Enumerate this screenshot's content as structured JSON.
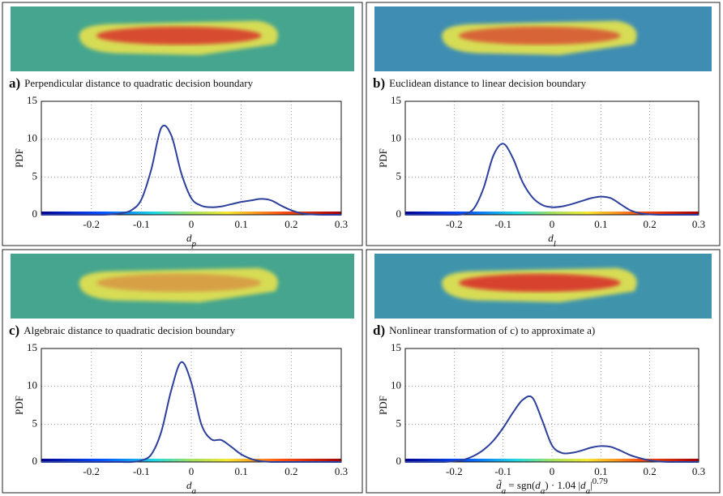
{
  "chart_data": [
    {
      "type": "line",
      "label": "a)",
      "title": "Perpendicular distance to quadratic decision boundary",
      "ylabel": "PDF",
      "xlabel": [
        {
          "text": "d",
          "italic": true
        },
        {
          "text": "p",
          "position": "sub",
          "italic": true
        }
      ],
      "xlim": [
        -0.3,
        0.3
      ],
      "ylim": [
        0,
        15
      ],
      "xticks": [
        -0.2,
        -0.1,
        0,
        0.1,
        0.2,
        0.3
      ],
      "yticks": [
        0,
        5,
        10,
        15
      ],
      "grid": true,
      "x": [
        -0.3,
        -0.28,
        -0.26,
        -0.24,
        -0.22,
        -0.2,
        -0.18,
        -0.16,
        -0.14,
        -0.12,
        -0.1,
        -0.08,
        -0.06,
        -0.04,
        -0.02,
        0,
        0.02,
        0.04,
        0.06,
        0.08,
        0.1,
        0.12,
        0.14,
        0.16,
        0.18,
        0.2,
        0.22,
        0.24,
        0.26,
        0.28,
        0.3
      ],
      "series": [
        {
          "color": "#2c3f9c",
          "values": [
            0,
            0,
            0,
            0,
            0,
            0,
            0,
            0.05,
            0.2,
            0.6,
            2.0,
            6.0,
            11.5,
            10.5,
            5.5,
            2.2,
            1.2,
            1.0,
            1.1,
            1.4,
            1.7,
            1.9,
            2.1,
            1.9,
            1.2,
            0.6,
            0.2,
            0.05,
            0,
            0,
            0
          ]
        }
      ]
    },
    {
      "type": "line",
      "label": "b)",
      "title": "Euclidean distance to linear decision boundary",
      "ylabel": "PDF",
      "xlabel": [
        {
          "text": "d",
          "italic": true
        },
        {
          "text": "l",
          "position": "sub",
          "italic": true
        }
      ],
      "xlim": [
        -0.3,
        0.3
      ],
      "ylim": [
        0,
        15
      ],
      "xticks": [
        -0.2,
        -0.1,
        0,
        0.1,
        0.2,
        0.3
      ],
      "yticks": [
        0,
        5,
        10,
        15
      ],
      "grid": true,
      "x": [
        -0.3,
        -0.28,
        -0.26,
        -0.24,
        -0.22,
        -0.2,
        -0.18,
        -0.16,
        -0.14,
        -0.12,
        -0.1,
        -0.08,
        -0.06,
        -0.04,
        -0.02,
        0,
        0.02,
        0.04,
        0.06,
        0.08,
        0.1,
        0.12,
        0.14,
        0.16,
        0.18,
        0.2,
        0.22,
        0.24,
        0.26,
        0.28,
        0.3
      ],
      "series": [
        {
          "color": "#2c3f9c",
          "values": [
            0,
            0,
            0,
            0,
            0,
            0,
            0.1,
            0.8,
            3.5,
            7.8,
            9.4,
            7.5,
            4.3,
            2.3,
            1.3,
            1.0,
            1.1,
            1.4,
            1.8,
            2.2,
            2.4,
            2.2,
            1.4,
            0.6,
            0.2,
            0.05,
            0,
            0,
            0,
            0,
            0
          ]
        }
      ]
    },
    {
      "type": "line",
      "label": "c)",
      "title": "Algebraic distance to quadratic decision boundary",
      "ylabel": "PDF",
      "xlabel": [
        {
          "text": "d",
          "italic": true
        },
        {
          "text": "a",
          "position": "sub",
          "italic": true
        }
      ],
      "xlim": [
        -0.3,
        0.3
      ],
      "ylim": [
        0,
        15
      ],
      "xticks": [
        -0.2,
        -0.1,
        0,
        0.1,
        0.2,
        0.3
      ],
      "yticks": [
        0,
        5,
        10,
        15
      ],
      "grid": true,
      "x": [
        -0.3,
        -0.28,
        -0.26,
        -0.24,
        -0.22,
        -0.2,
        -0.18,
        -0.16,
        -0.14,
        -0.12,
        -0.1,
        -0.08,
        -0.06,
        -0.04,
        -0.02,
        0,
        0.02,
        0.04,
        0.06,
        0.08,
        0.1,
        0.12,
        0.14,
        0.16,
        0.18,
        0.2,
        0.22,
        0.24,
        0.26,
        0.28,
        0.3
      ],
      "series": [
        {
          "color": "#2c3f9c",
          "values": [
            0,
            0,
            0,
            0,
            0,
            0,
            0,
            0,
            0,
            0,
            0.2,
            1.0,
            4.0,
            9.5,
            13.2,
            10.5,
            5.0,
            3.0,
            2.9,
            2.0,
            1.0,
            0.4,
            0.1,
            0,
            0,
            0,
            0,
            0,
            0,
            0,
            0
          ]
        }
      ]
    },
    {
      "type": "line",
      "label": "d)",
      "title": "Nonlinear transformation of c) to approximate a)",
      "ylabel": "PDF",
      "xlabel": [
        {
          "text": "d̃",
          "italic": true
        },
        {
          "text": "a",
          "position": "sub",
          "italic": true
        },
        {
          "text": " = sgn("
        },
        {
          "text": "d",
          "italic": true
        },
        {
          "text": "a",
          "position": "sub",
          "italic": true
        },
        {
          "text": ") · 1.04 |"
        },
        {
          "text": "d",
          "italic": true
        },
        {
          "text": "a",
          "position": "sub",
          "italic": true
        },
        {
          "text": "|"
        },
        {
          "text": "0.79",
          "position": "sup"
        }
      ],
      "xlim": [
        -0.3,
        0.3
      ],
      "ylim": [
        0,
        15
      ],
      "xticks": [
        -0.2,
        -0.1,
        0,
        0.1,
        0.2,
        0.3
      ],
      "yticks": [
        0,
        5,
        10,
        15
      ],
      "grid": true,
      "x": [
        -0.3,
        -0.28,
        -0.26,
        -0.24,
        -0.22,
        -0.2,
        -0.18,
        -0.16,
        -0.14,
        -0.12,
        -0.1,
        -0.08,
        -0.06,
        -0.04,
        -0.02,
        0,
        0.02,
        0.04,
        0.06,
        0.08,
        0.1,
        0.12,
        0.14,
        0.16,
        0.18,
        0.2,
        0.22,
        0.24,
        0.26,
        0.28,
        0.3
      ],
      "series": [
        {
          "color": "#2c3f9c",
          "values": [
            0,
            0,
            0,
            0,
            0,
            0.1,
            0.3,
            0.8,
            1.6,
            2.8,
            4.5,
            6.5,
            8.2,
            8.5,
            5.5,
            2.2,
            1.2,
            1.2,
            1.5,
            1.9,
            2.1,
            2.0,
            1.5,
            0.9,
            0.5,
            0.2,
            0.05,
            0,
            0,
            0,
            0
          ]
        }
      ]
    }
  ]
}
